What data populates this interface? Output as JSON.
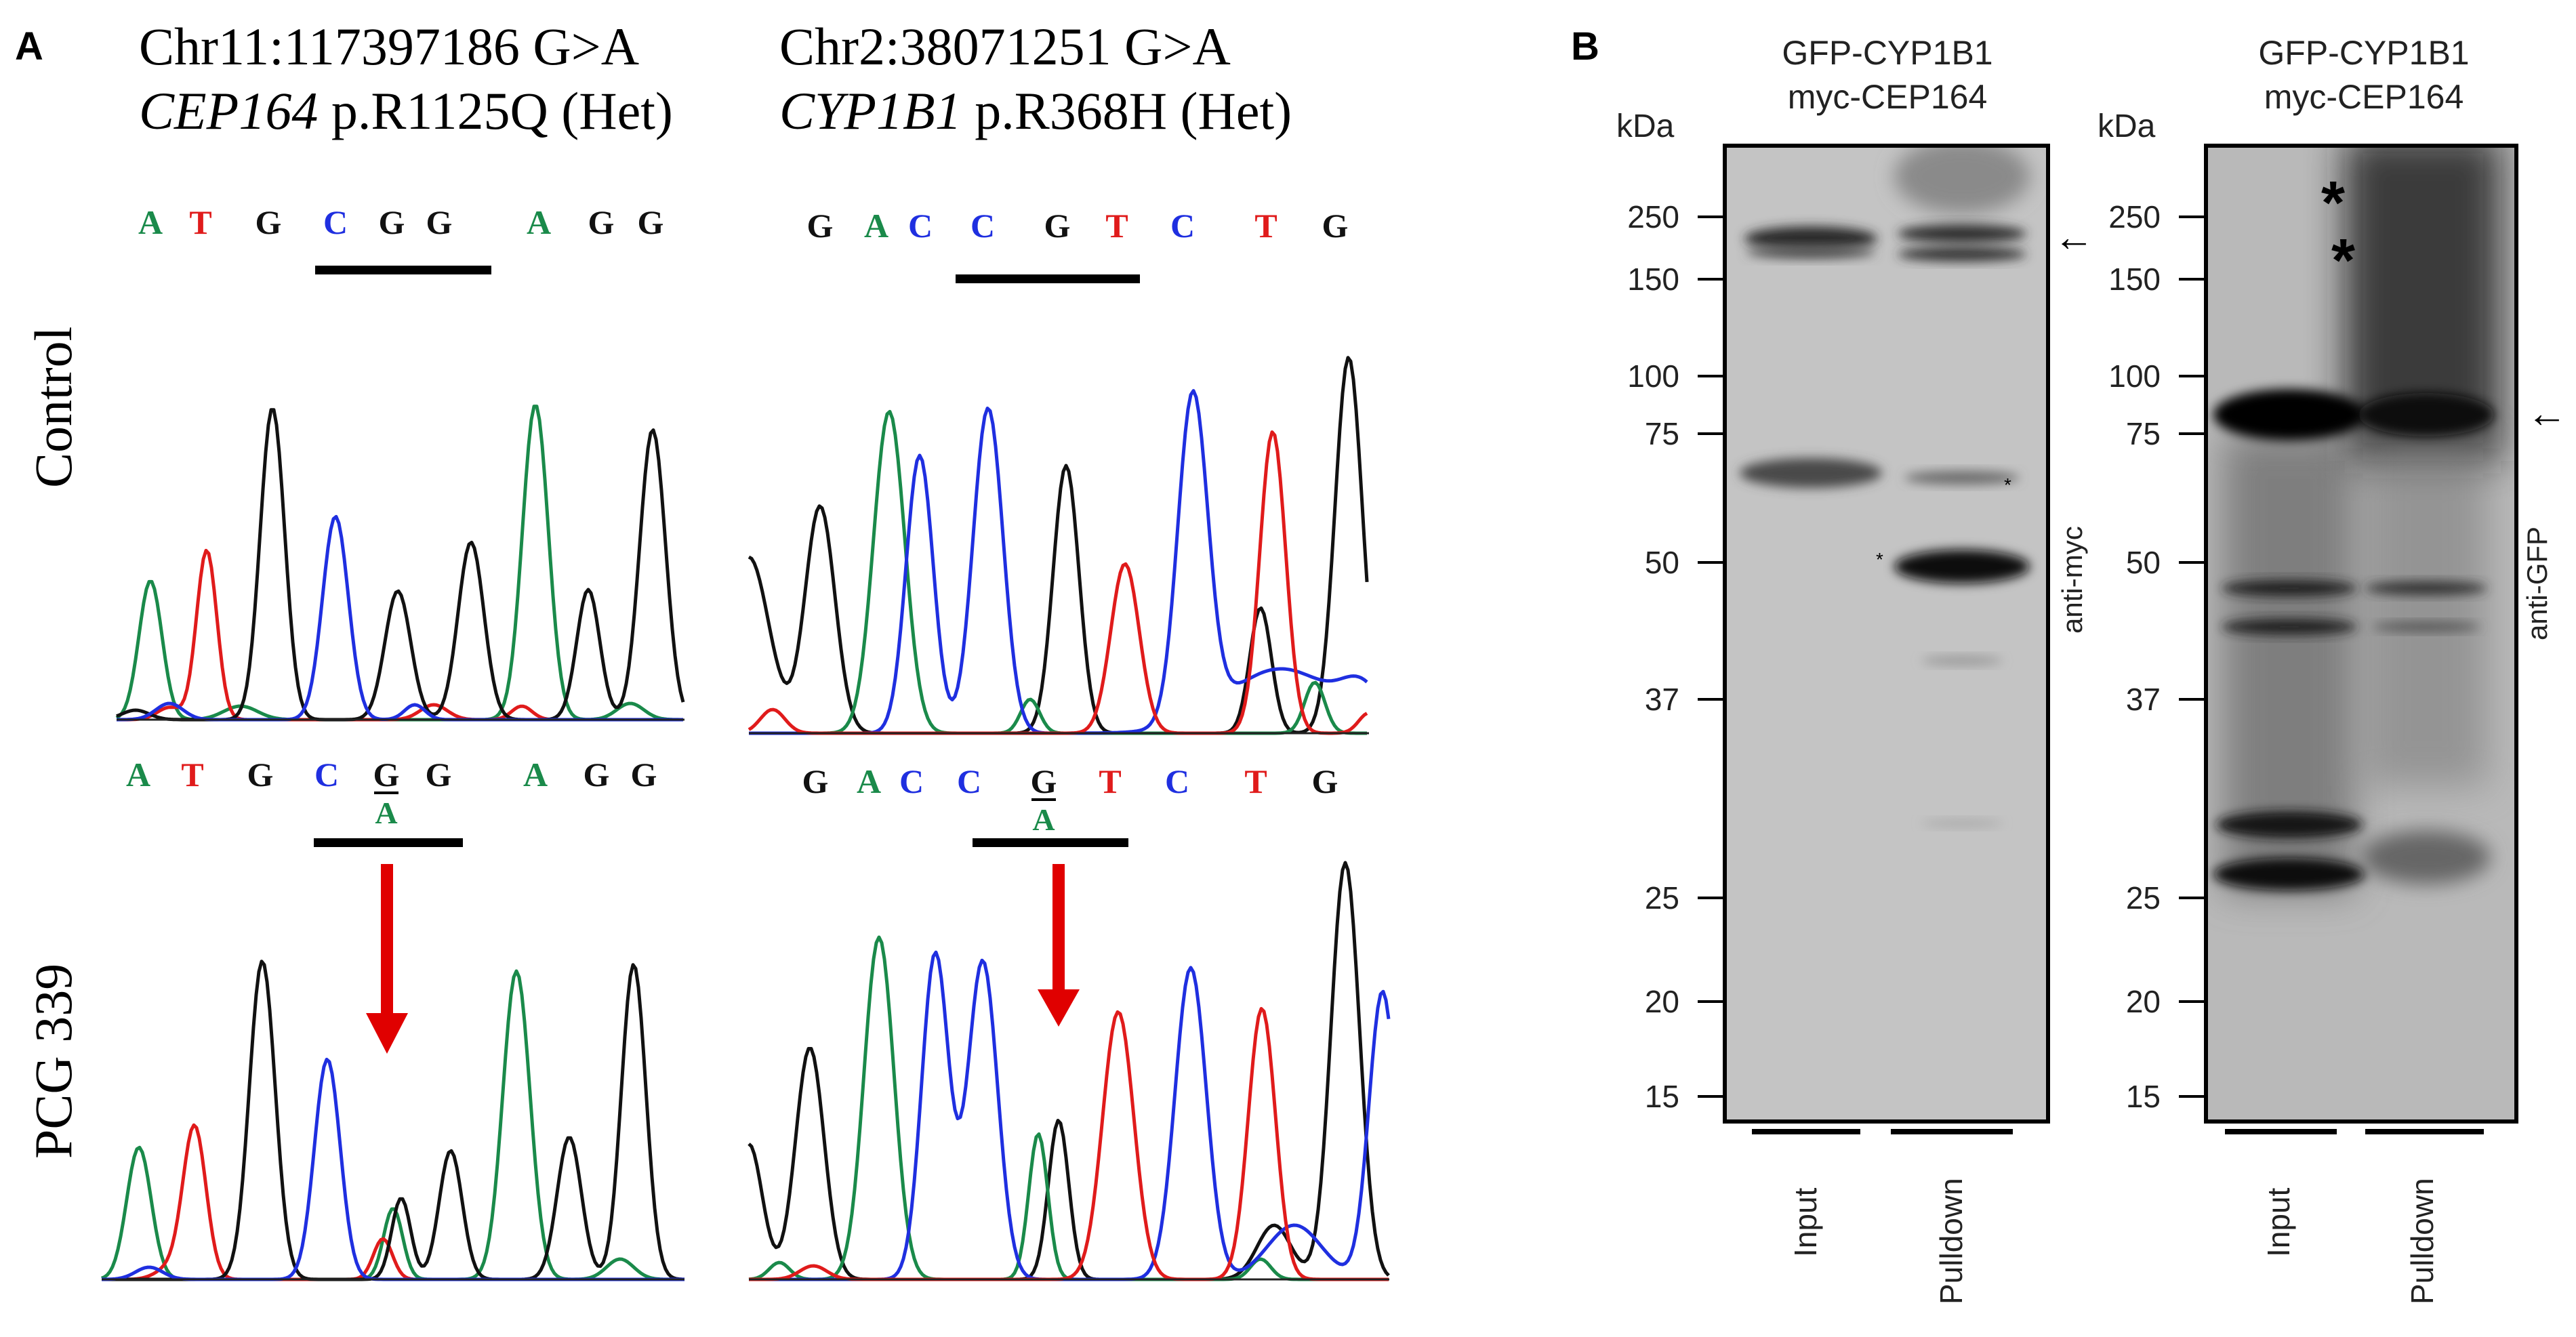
{
  "panel_a": {
    "label": "A",
    "left_header": {
      "line1": "Chr11:117397186 G>A",
      "gene": "CEP164",
      "rest": " p.R1125Q (Het)"
    },
    "right_header": {
      "line1": "Chr2:38071251 G>A",
      "gene": "CYP1B1",
      "rest": " p.R368H (Het)"
    },
    "row_labels": {
      "control": "Control",
      "patient": "PCG 339"
    },
    "left_control_bases": [
      "A",
      "T",
      "G",
      "C",
      "G",
      "G",
      "A",
      "G",
      "G"
    ],
    "left_patient_bases": [
      "A",
      "T",
      "G",
      "C",
      "G",
      "G",
      "A",
      "G",
      "G"
    ],
    "right_control_bases": [
      "G",
      "A",
      "C",
      "C",
      "G",
      "T",
      "C",
      "T",
      "G"
    ],
    "right_patient_bases": [
      "G",
      "A",
      "C",
      "C",
      "G",
      "T",
      "C",
      "T",
      "G"
    ],
    "variant_alt_base": "A",
    "colors": {
      "A": "#1a8a4a",
      "T": "#e01b1b",
      "G": "#111111",
      "C": "#1f2fe0",
      "arrow": "#e00000"
    }
  },
  "panel_b": {
    "label": "B",
    "blot_left": {
      "header_line1": "GFP-CYP1B1",
      "header_line2": "myc-CEP164",
      "kda_label": "kDa",
      "markers": [
        "250",
        "150",
        "100",
        "75",
        "50",
        "37",
        "25",
        "20",
        "15"
      ],
      "antibody": "anti-myc",
      "lanes": [
        "Input",
        "Pulldown"
      ],
      "asterisk": "*"
    },
    "blot_right": {
      "header_line1": "GFP-CYP1B1",
      "header_line2": "myc-CEP164",
      "kda_label": "kDa",
      "markers": [
        "250",
        "150",
        "100",
        "75",
        "50",
        "37",
        "25",
        "20",
        "15"
      ],
      "antibody": "anti-GFP",
      "lanes": [
        "Input",
        "Pulldown"
      ],
      "asterisk": "*"
    }
  }
}
